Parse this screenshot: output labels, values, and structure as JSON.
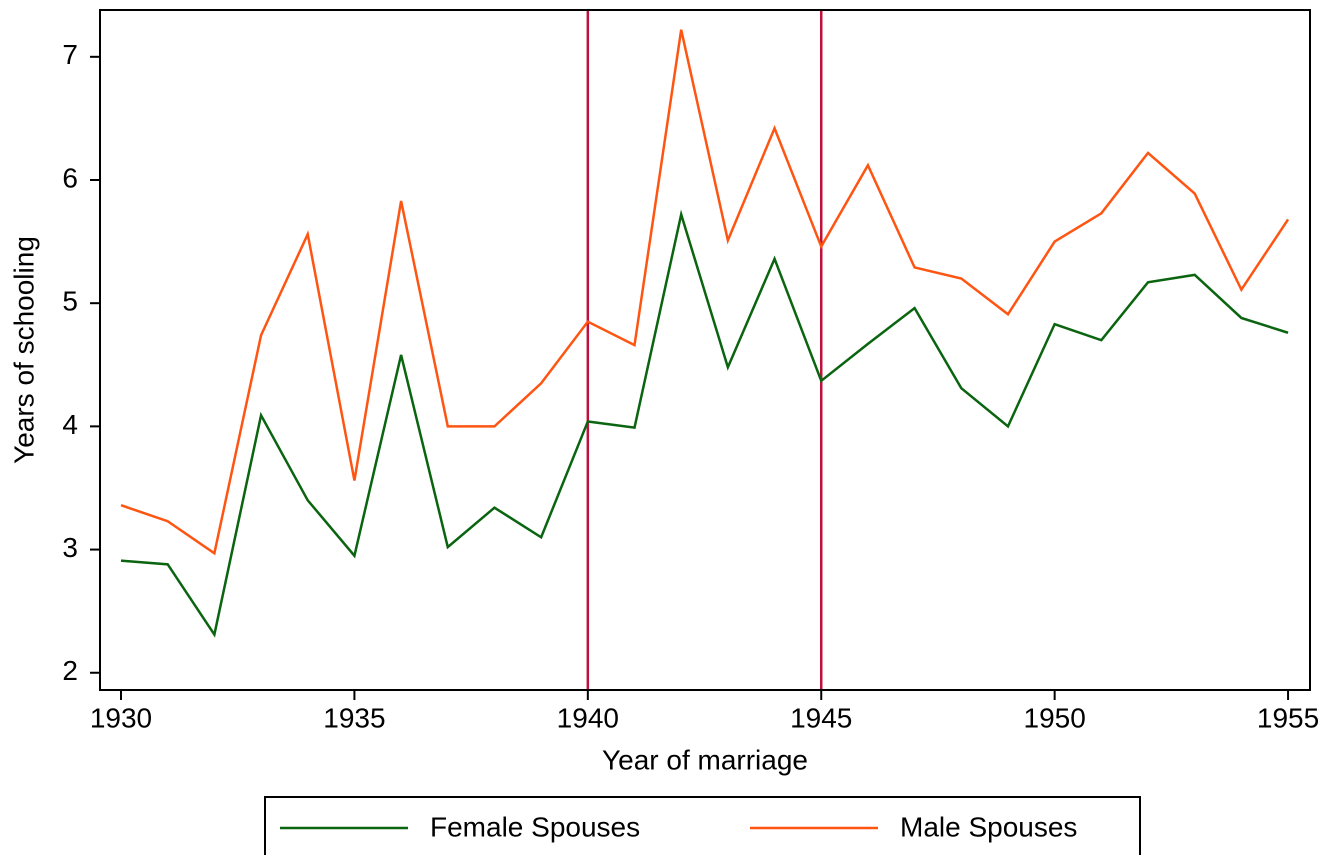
{
  "chart_data": {
    "type": "line",
    "x_label": "Year of marriage",
    "y_label": "Years of schooling",
    "x": [
      1930,
      1931,
      1932,
      1933,
      1934,
      1935,
      1936,
      1937,
      1938,
      1939,
      1940,
      1941,
      1942,
      1943,
      1944,
      1945,
      1946,
      1947,
      1948,
      1949,
      1950,
      1951,
      1952,
      1953,
      1954,
      1955
    ],
    "series": [
      {
        "name": "Female Spouses",
        "color": "#0a6410",
        "values": [
          2.91,
          2.88,
          2.31,
          4.09,
          3.4,
          2.95,
          4.58,
          3.02,
          3.34,
          3.1,
          4.04,
          3.99,
          5.72,
          4.48,
          5.36,
          4.37,
          4.67,
          4.96,
          4.31,
          4.0,
          4.83,
          4.7,
          5.17,
          5.23,
          4.88,
          4.76
        ]
      },
      {
        "name": "Male Spouses",
        "color": "#ff5512",
        "values": [
          3.36,
          3.23,
          2.97,
          4.74,
          5.56,
          3.56,
          5.83,
          4.0,
          4.0,
          4.35,
          4.85,
          4.66,
          7.22,
          5.51,
          6.42,
          5.46,
          6.12,
          5.29,
          5.2,
          4.91,
          5.5,
          5.73,
          6.22,
          5.89,
          5.11,
          5.68
        ]
      }
    ],
    "vlines": [
      1940,
      1945
    ],
    "vline_color": "#c0103c",
    "xlim": [
      1929.55,
      1955.47
    ],
    "ylim": [
      1.86,
      7.38
    ],
    "xticks": [
      1930,
      1935,
      1940,
      1945,
      1950,
      1955
    ],
    "yticks": [
      2,
      3,
      4,
      5,
      6,
      7
    ],
    "legend": "bottom"
  }
}
